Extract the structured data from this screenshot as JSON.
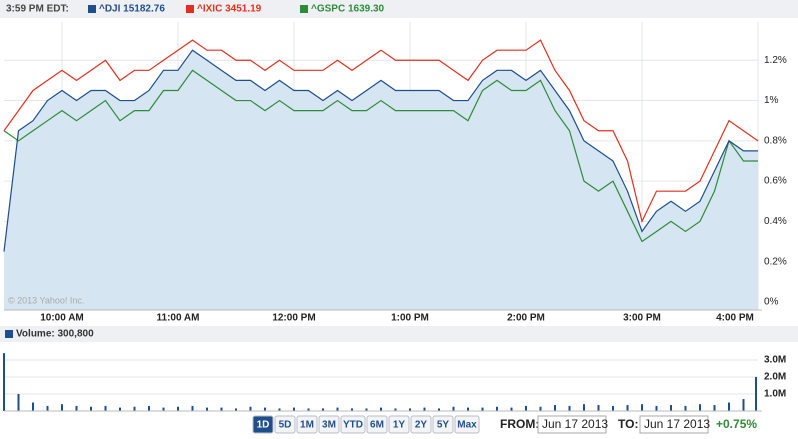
{
  "header": {
    "time": "3:59 PM EDT:"
  },
  "copyright": "© 2013 Yahoo! Inc.",
  "chart_data": [
    {
      "type": "line",
      "x": [
        9.5,
        9.625,
        9.75,
        9.875,
        10,
        10.125,
        10.25,
        10.375,
        10.5,
        10.625,
        10.75,
        10.875,
        11,
        11.125,
        11.25,
        11.375,
        11.5,
        11.625,
        11.75,
        11.875,
        12,
        12.125,
        12.25,
        12.375,
        12.5,
        12.625,
        12.75,
        12.875,
        13,
        13.125,
        13.25,
        13.375,
        13.5,
        13.625,
        13.75,
        13.875,
        14,
        14.125,
        14.25,
        14.375,
        14.5,
        14.625,
        14.75,
        14.875,
        15,
        15.125,
        15.25,
        15.375,
        15.5,
        15.625,
        15.75,
        15.875,
        16
      ],
      "series": [
        {
          "name": "^DJI 15182.76",
          "color": "#1f4e8c",
          "fill": "#d5e5f1",
          "values": [
            0.25,
            0.85,
            0.9,
            1.0,
            1.05,
            1.0,
            1.05,
            1.05,
            1.0,
            1.0,
            1.05,
            1.15,
            1.15,
            1.25,
            1.2,
            1.15,
            1.1,
            1.1,
            1.05,
            1.1,
            1.05,
            1.05,
            1.0,
            1.05,
            1.0,
            1.05,
            1.1,
            1.05,
            1.05,
            1.05,
            1.05,
            1.0,
            1.0,
            1.1,
            1.15,
            1.15,
            1.1,
            1.15,
            1.05,
            0.95,
            0.8,
            0.75,
            0.7,
            0.55,
            0.35,
            0.45,
            0.5,
            0.45,
            0.5,
            0.65,
            0.8,
            0.75,
            0.75
          ]
        },
        {
          "name": "^IXIC 3451.19",
          "color": "#e0301e",
          "values": [
            0.85,
            0.95,
            1.05,
            1.1,
            1.15,
            1.1,
            1.15,
            1.2,
            1.1,
            1.15,
            1.15,
            1.2,
            1.25,
            1.3,
            1.25,
            1.25,
            1.2,
            1.2,
            1.15,
            1.2,
            1.15,
            1.15,
            1.15,
            1.2,
            1.15,
            1.2,
            1.25,
            1.2,
            1.2,
            1.2,
            1.2,
            1.15,
            1.1,
            1.2,
            1.25,
            1.25,
            1.25,
            1.3,
            1.15,
            1.05,
            0.9,
            0.85,
            0.85,
            0.7,
            0.4,
            0.55,
            0.55,
            0.55,
            0.6,
            0.75,
            0.9,
            0.85,
            0.8
          ]
        },
        {
          "name": "^GSPC 1639.30",
          "color": "#2e8b3a",
          "values": [
            0.85,
            0.8,
            0.85,
            0.9,
            0.95,
            0.9,
            0.95,
            1.0,
            0.9,
            0.95,
            0.95,
            1.05,
            1.05,
            1.15,
            1.1,
            1.05,
            1.0,
            1.0,
            0.95,
            1.0,
            0.95,
            0.95,
            0.95,
            1.0,
            0.95,
            0.95,
            1.0,
            0.95,
            0.95,
            0.95,
            0.95,
            0.95,
            0.9,
            1.05,
            1.1,
            1.05,
            1.05,
            1.1,
            0.95,
            0.85,
            0.6,
            0.55,
            0.6,
            0.45,
            0.3,
            0.35,
            0.4,
            0.35,
            0.4,
            0.55,
            0.8,
            0.7,
            0.7
          ]
        }
      ],
      "xlim": [
        9.5,
        16
      ],
      "xticks": [
        {
          "value": 10,
          "label": "10:00 AM"
        },
        {
          "value": 11,
          "label": "11:00 AM"
        },
        {
          "value": 12,
          "label": "12:00 PM"
        },
        {
          "value": 13,
          "label": "1:00 PM"
        },
        {
          "value": 14,
          "label": "2:00 PM"
        },
        {
          "value": 15,
          "label": "3:00 PM"
        },
        {
          "value": 16,
          "label": "4:00 PM"
        }
      ],
      "ylim": [
        -0.04,
        1.39
      ],
      "yticks": [
        {
          "value": 0,
          "label": "0%"
        },
        {
          "value": 0.2,
          "label": "0.2%"
        },
        {
          "value": 0.4,
          "label": "0.4%"
        },
        {
          "value": 0.6,
          "label": "0.6%"
        },
        {
          "value": 0.8,
          "label": "0.8%"
        },
        {
          "value": 1,
          "label": "1%"
        },
        {
          "value": 1.2,
          "label": "1.2%"
        }
      ],
      "grid": true
    },
    {
      "type": "bar",
      "title": "Volume: 300,800",
      "color": "#1f4e8c",
      "x": [
        9.5,
        9.625,
        9.75,
        9.875,
        10,
        10.125,
        10.25,
        10.375,
        10.5,
        10.625,
        10.75,
        10.875,
        11,
        11.125,
        11.25,
        11.375,
        11.5,
        11.625,
        11.75,
        11.875,
        12,
        12.125,
        12.25,
        12.375,
        12.5,
        12.625,
        12.75,
        12.875,
        13,
        13.125,
        13.25,
        13.375,
        13.5,
        13.625,
        13.75,
        13.875,
        14,
        14.125,
        14.25,
        14.375,
        14.5,
        14.625,
        14.75,
        14.875,
        15,
        15.125,
        15.25,
        15.375,
        15.5,
        15.625,
        15.75,
        15.875,
        16
      ],
      "values": [
        3400000,
        1000000,
        500000,
        300000,
        400000,
        300000,
        250000,
        300000,
        200000,
        250000,
        300000,
        200000,
        250000,
        300000,
        200000,
        200000,
        150000,
        250000,
        200000,
        150000,
        200000,
        150000,
        150000,
        200000,
        150000,
        150000,
        200000,
        150000,
        150000,
        200000,
        150000,
        250000,
        200000,
        200000,
        250000,
        200000,
        300000,
        250000,
        350000,
        300000,
        400000,
        350000,
        300000,
        350000,
        400000,
        300000,
        350000,
        300000,
        400000,
        350000,
        500000,
        700000,
        2000000
      ],
      "xlim": [
        9.5,
        16
      ],
      "ylim": [
        0,
        3880000
      ],
      "yticks": [
        {
          "value": 1000000,
          "label": "1.0M"
        },
        {
          "value": 2000000,
          "label": "2.0M"
        },
        {
          "value": 3000000,
          "label": "3.0M"
        }
      ]
    }
  ],
  "controls": {
    "ranges": [
      "1D",
      "5D",
      "1M",
      "3M",
      "YTD",
      "6M",
      "1Y",
      "2Y",
      "5Y",
      "Max"
    ],
    "selected": 0,
    "from_label": "FROM:",
    "from": "Jun 17 2013",
    "to_label": "TO:",
    "to": "Jun 17 2013",
    "change": "+0.75%"
  }
}
